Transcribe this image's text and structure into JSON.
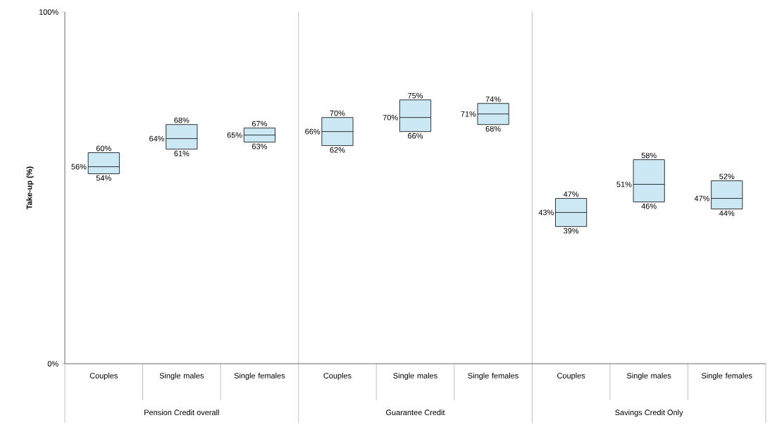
{
  "chart_data": {
    "type": "box",
    "ylabel": "Take-up (%)",
    "categories": [
      "Couples",
      "Single males",
      "Single females",
      "Couples",
      "Single males",
      "Single females",
      "Couples",
      "Single males",
      "Single females"
    ],
    "boxes": [
      {
        "low": 54,
        "q1": 54,
        "median": 56,
        "q3": 60,
        "high": 60
      },
      {
        "low": 61,
        "q1": 61,
        "median": 64,
        "q3": 68,
        "high": 68
      },
      {
        "low": 63,
        "q1": 63,
        "median": 65,
        "q3": 67,
        "high": 67
      },
      {
        "low": 62,
        "q1": 62,
        "median": 66,
        "q3": 70,
        "high": 70
      },
      {
        "low": 66,
        "q1": 66,
        "median": 70,
        "q3": 75,
        "high": 75
      },
      {
        "low": 68,
        "q1": 68,
        "median": 71,
        "q3": 74,
        "high": 74
      },
      {
        "low": 39,
        "q1": 39,
        "median": 43,
        "q3": 47,
        "high": 47
      },
      {
        "low": 46,
        "q1": 46,
        "median": 51,
        "q3": 58,
        "high": 58
      },
      {
        "low": 44,
        "q1": 44,
        "median": 47,
        "q3": 52,
        "high": 52
      }
    ],
    "value_labels": [
      [
        "54%",
        "56%",
        "60%"
      ],
      [
        "61%",
        "64%",
        "68%"
      ],
      [
        "63%",
        "65%",
        "67%"
      ],
      [
        "62%",
        "66%",
        "70%"
      ],
      [
        "66%",
        "70%",
        "75%"
      ],
      [
        "68%",
        "71%",
        "74%"
      ],
      [
        "39%",
        "43%",
        "47%"
      ],
      [
        "46%",
        "51%",
        "58%"
      ],
      [
        "44%",
        "47%",
        "52%"
      ]
    ],
    "color": "#cce8f4",
    "ylim": [
      0,
      100
    ],
    "yticks": [
      {
        "value": 0,
        "label": "0%"
      },
      {
        "value": 100,
        "label": "100%"
      }
    ],
    "annotations": [
      "Pension Credit overall",
      "Guarantee Credit",
      "Savings Credit Only"
    ],
    "grid": false
  }
}
